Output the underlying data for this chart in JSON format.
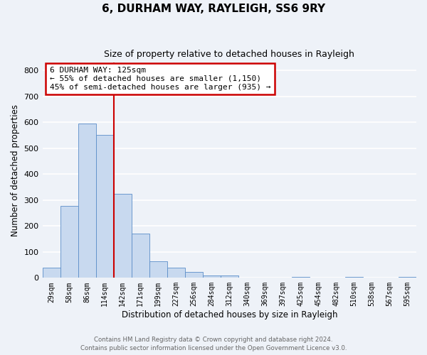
{
  "title": "6, DURHAM WAY, RAYLEIGH, SS6 9RY",
  "subtitle": "Size of property relative to detached houses in Rayleigh",
  "xlabel": "Distribution of detached houses by size in Rayleigh",
  "ylabel": "Number of detached properties",
  "bar_color": "#c8d9ef",
  "bar_edge_color": "#5b8dc8",
  "background_color": "#eef2f8",
  "grid_color": "#ffffff",
  "annotation_box_edge_color": "#cc0000",
  "vline_color": "#cc0000",
  "categories": [
    "29sqm",
    "58sqm",
    "86sqm",
    "114sqm",
    "142sqm",
    "171sqm",
    "199sqm",
    "227sqm",
    "256sqm",
    "284sqm",
    "312sqm",
    "340sqm",
    "369sqm",
    "397sqm",
    "425sqm",
    "454sqm",
    "482sqm",
    "510sqm",
    "538sqm",
    "567sqm",
    "595sqm"
  ],
  "values": [
    38,
    278,
    595,
    552,
    325,
    170,
    64,
    38,
    22,
    10,
    10,
    0,
    0,
    0,
    5,
    0,
    0,
    5,
    0,
    0,
    5
  ],
  "ylim": [
    0,
    830
  ],
  "yticks": [
    0,
    100,
    200,
    300,
    400,
    500,
    600,
    700,
    800
  ],
  "annotation_line1": "6 DURHAM WAY: 125sqm",
  "annotation_line2": "← 55% of detached houses are smaller (1,150)",
  "annotation_line3": "45% of semi-detached houses are larger (935) →",
  "footer_line1": "Contains HM Land Registry data © Crown copyright and database right 2024.",
  "footer_line2": "Contains public sector information licensed under the Open Government Licence v3.0."
}
